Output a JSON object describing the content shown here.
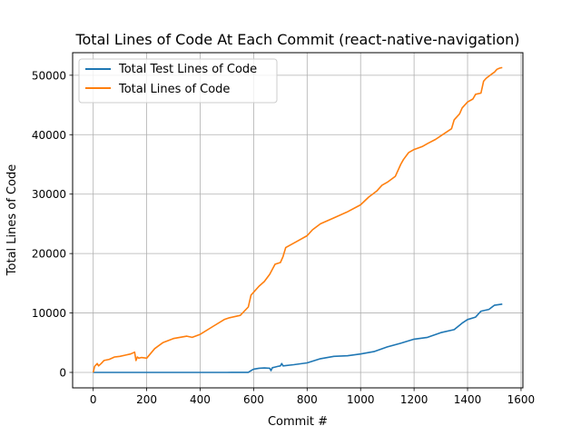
{
  "chart_data": {
    "type": "line",
    "title": "Total Lines of Code At Each Commit (react-native-navigation)",
    "xlabel": "Commit #",
    "ylabel": "Total Lines of Code",
    "xlim": [
      -77,
      1607
    ],
    "ylim": [
      -2600,
      53800
    ],
    "xticks": [
      0,
      200,
      400,
      600,
      800,
      1000,
      1200,
      1400,
      1600
    ],
    "yticks": [
      0,
      10000,
      20000,
      30000,
      40000,
      50000
    ],
    "grid": true,
    "legend_position": "upper left",
    "series": [
      {
        "name": "Total Test Lines of Code",
        "color": "#1f77b4",
        "x": [
          0,
          100,
          200,
          300,
          400,
          500,
          580,
          590,
          600,
          620,
          640,
          660,
          665,
          670,
          680,
          690,
          700,
          705,
          710,
          750,
          800,
          850,
          900,
          950,
          1000,
          1050,
          1100,
          1150,
          1200,
          1250,
          1300,
          1350,
          1380,
          1400,
          1430,
          1450,
          1480,
          1500,
          1530
        ],
        "values": [
          0,
          0,
          0,
          0,
          0,
          0,
          20,
          300,
          550,
          700,
          750,
          700,
          300,
          800,
          900,
          1000,
          1100,
          1500,
          1100,
          1300,
          1600,
          2300,
          2700,
          2800,
          3100,
          3500,
          4300,
          4900,
          5600,
          5900,
          6700,
          7200,
          8300,
          8900,
          9300,
          10300,
          10600,
          11300,
          11500
        ]
      },
      {
        "name": "Total Lines of Code",
        "color": "#ff7f0e",
        "x": [
          0,
          5,
          15,
          20,
          30,
          40,
          60,
          80,
          100,
          120,
          140,
          155,
          160,
          165,
          170,
          180,
          200,
          230,
          260,
          300,
          350,
          370,
          400,
          450,
          490,
          510,
          550,
          580,
          590,
          600,
          620,
          640,
          660,
          680,
          700,
          710,
          720,
          740,
          760,
          800,
          820,
          850,
          900,
          950,
          1000,
          1030,
          1060,
          1080,
          1100,
          1130,
          1150,
          1160,
          1180,
          1200,
          1230,
          1250,
          1280,
          1300,
          1340,
          1350,
          1370,
          1380,
          1400,
          1420,
          1430,
          1450,
          1460,
          1470,
          1490,
          1500,
          1510,
          1520,
          1530
        ],
        "values": [
          0,
          1000,
          1500,
          1100,
          1500,
          2000,
          2200,
          2600,
          2700,
          2900,
          3100,
          3400,
          2000,
          2600,
          2400,
          2500,
          2400,
          4000,
          5000,
          5700,
          6100,
          5900,
          6400,
          7800,
          8900,
          9200,
          9600,
          11000,
          13000,
          13500,
          14500,
          15300,
          16500,
          18200,
          18500,
          19500,
          21000,
          21500,
          22000,
          23000,
          24000,
          25000,
          26000,
          27000,
          28200,
          29500,
          30500,
          31500,
          32000,
          33000,
          35000,
          35800,
          37000,
          37500,
          38000,
          38500,
          39200,
          39800,
          41000,
          42500,
          43500,
          44500,
          45500,
          46000,
          46800,
          47000,
          49000,
          49500,
          50200,
          50500,
          51000,
          51200,
          51300
        ]
      }
    ]
  }
}
